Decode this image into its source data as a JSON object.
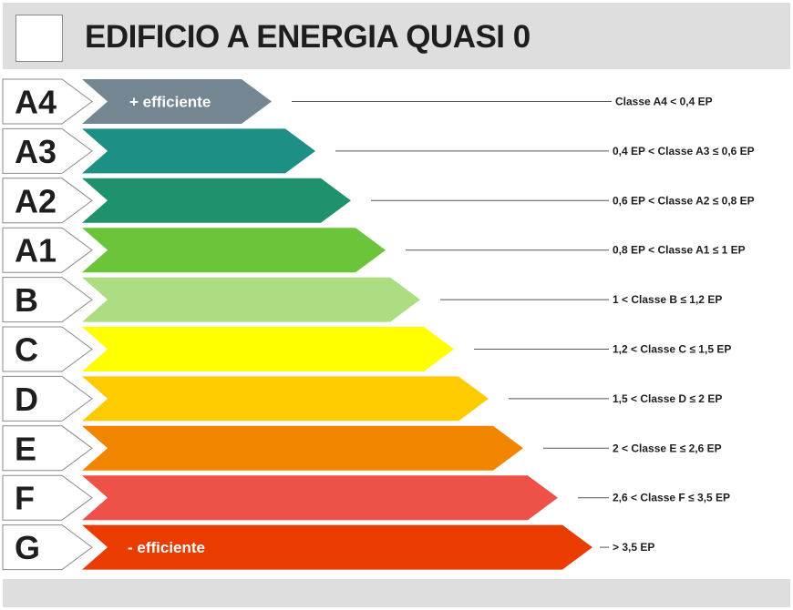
{
  "title": "EDIFICIO A ENERGIA QUASI 0",
  "classes": [
    {
      "label": "A4",
      "color": "#758693",
      "bar_text": "+ efficiente",
      "range": "Classe A4 < 0,4 EP"
    },
    {
      "label": "A3",
      "color": "#1e8f84",
      "bar_text": "",
      "range": "0,4 EP < Classe A3 ≤ 0,6 EP"
    },
    {
      "label": "A2",
      "color": "#1f916c",
      "bar_text": "",
      "range": "0,6 EP < Classe A2 ≤ 0,8 EP"
    },
    {
      "label": "A1",
      "color": "#6cc43a",
      "bar_text": "",
      "range": "0,8 EP < Classe A1 ≤ 1 EP"
    },
    {
      "label": "B",
      "color": "#acdd82",
      "bar_text": "",
      "range": "1 < Classe B ≤ 1,2 EP"
    },
    {
      "label": "C",
      "color": "#ffff00",
      "bar_text": "",
      "range": "1,2 < Classe C ≤ 1,5 EP"
    },
    {
      "label": "D",
      "color": "#fdcb00",
      "bar_text": "",
      "range": "1,5 < Classe D ≤ 2 EP"
    },
    {
      "label": "E",
      "color": "#f28500",
      "bar_text": "",
      "range": "2 < Classe E ≤ 2,6 EP"
    },
    {
      "label": "F",
      "color": "#ee5147",
      "bar_text": "",
      "range": "2,6 < Classe F ≤ 3,5 EP"
    },
    {
      "label": "G",
      "color": "#eb3c00",
      "bar_text": "- efficiente",
      "range": "> 3,5 EP"
    }
  ]
}
